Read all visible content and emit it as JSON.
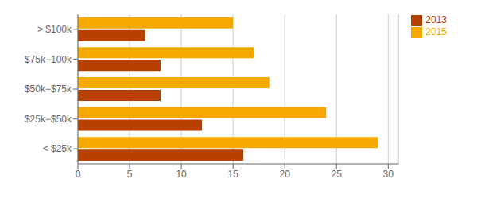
{
  "chart_data": {
    "type": "bar",
    "orientation": "horizontal",
    "categories": [
      "> $100k",
      "$75k−100k",
      "$50k−$75k",
      "$25k−$50k",
      "< $25k"
    ],
    "series": [
      {
        "name": "2015",
        "color": "#F5A800",
        "values": [
          15,
          17,
          18.5,
          24,
          29
        ]
      },
      {
        "name": "2013",
        "color": "#B84000",
        "values": [
          6.5,
          8,
          8,
          12,
          16
        ]
      }
    ],
    "xlim": [
      0,
      31
    ],
    "xticks": [
      0,
      5,
      10,
      15,
      20,
      25,
      30
    ],
    "grid": true,
    "legend": "upper right"
  }
}
